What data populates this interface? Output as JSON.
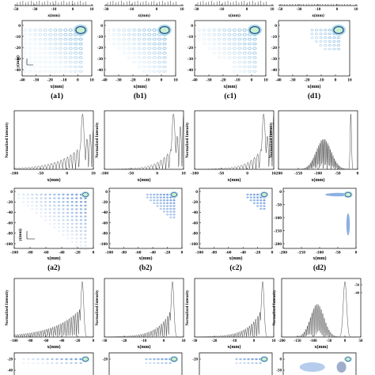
{
  "axis_labels": {
    "x_mm": "x(mm)",
    "y_mm": "y(mm)",
    "intensity": "Normalized Intensity"
  },
  "panel_labels": [
    "(a1)",
    "(b1)",
    "(c1)",
    "(d1)",
    "(a2)",
    "(b2)",
    "(c2)",
    "(d2)"
  ],
  "chart_data": [
    {
      "id": "row0-top-profiles",
      "type": "line",
      "panels": [
        {
          "xticks": [
            "-50",
            "-30",
            "-10",
            "0",
            "10"
          ]
        },
        {
          "xticks": [
            "-30",
            "-10",
            "0",
            "10"
          ]
        },
        {
          "xticks": [
            "-30",
            "-10",
            "0",
            "10"
          ]
        },
        {
          "xticks": [
            "-50",
            "-30",
            "-10",
            "0",
            "10"
          ]
        }
      ],
      "xlabel": "x(mm)"
    },
    {
      "id": "row1-intensity-maps",
      "type": "heatmap",
      "panels": [
        {
          "label": "(a1)",
          "xlim": [
            -40,
            10
          ],
          "ylim": [
            -40,
            10
          ],
          "xticks": [
            "-40",
            "-30",
            "-20",
            "-10",
            "0",
            "10"
          ],
          "yticks": [
            "0",
            "-10",
            "-20",
            "-30",
            "-40"
          ]
        },
        {
          "label": "(b1)",
          "xlim": [
            -40,
            10
          ],
          "ylim": [
            -40,
            10
          ],
          "xticks": [
            "-40",
            "-30",
            "-20",
            "-10",
            "0",
            "10"
          ],
          "yticks": [
            "0",
            "-10",
            "-20",
            "-30",
            "-40"
          ]
        },
        {
          "label": "(c1)",
          "xlim": [
            -40,
            10
          ],
          "ylim": [
            -40,
            10
          ],
          "xticks": [
            "-40",
            "-30",
            "-20",
            "-10",
            "0",
            "10"
          ],
          "yticks": [
            "0",
            "-10",
            "-20",
            "-30",
            "-40"
          ]
        },
        {
          "label": "(d1)",
          "xlim": [
            -40,
            10
          ],
          "ylim": [
            -40,
            10
          ],
          "xticks": [
            "-40",
            "-30",
            "-20",
            "-10",
            "0",
            "10"
          ],
          "yticks": [
            "0",
            "-10",
            "-20",
            "-30",
            "-40"
          ]
        }
      ],
      "xlabel": "x(mm)",
      "ylabel": "y(mm)"
    },
    {
      "id": "row2-intensity-profiles",
      "type": "line",
      "panels": [
        {
          "xlim": [
            -100,
            10
          ],
          "xticks": [
            "-100",
            "-50",
            "0",
            "10"
          ],
          "peak_x": -5,
          "envelope": "decaying oscillation toward -x"
        },
        {
          "xlim": [
            -100,
            10
          ],
          "xticks": [
            "-100",
            "-50",
            "0",
            "10"
          ],
          "peak_x": -4
        },
        {
          "xlim": [
            -100,
            10
          ],
          "xticks": [
            "-100",
            "-50",
            "0",
            "10"
          ],
          "peak_x": -4
        },
        {
          "xlim": [
            -200,
            10
          ],
          "xticks": [
            "-200",
            "-150",
            "-100",
            "-50",
            "0"
          ],
          "peak_x": -8,
          "secondary_lobe_center": -80
        }
      ],
      "xlabel": "x(mm)",
      "ylabel": "Normalized Intensity"
    },
    {
      "id": "row3-intensity-maps",
      "type": "heatmap",
      "panels": [
        {
          "label": "(a2)",
          "xticks": [
            "-100",
            "-80",
            "-60",
            "-40",
            "-20",
            "0"
          ],
          "yticks": [
            "0",
            "-20",
            "-40",
            "-60",
            "-80",
            "-100"
          ]
        },
        {
          "label": "(b2)",
          "xticks": [
            "-100",
            "-80",
            "-60",
            "-40",
            "-20",
            "0"
          ],
          "yticks": [
            "0",
            "-20",
            "-40",
            "-60",
            "-80",
            "-100"
          ]
        },
        {
          "label": "(c2)",
          "xticks": [
            "-100",
            "-80",
            "-60",
            "-40",
            "-20",
            "0"
          ],
          "yticks": [
            "0",
            "-20",
            "-40",
            "-60",
            "-80",
            "-100"
          ]
        },
        {
          "label": "(d2)",
          "xticks": [
            "-200",
            "-150",
            "-100",
            "-50",
            "0"
          ],
          "yticks": [
            "0",
            "-50",
            "-100",
            "-150",
            "-200"
          ]
        }
      ],
      "xlabel": "x(mm)",
      "ylabel": "y(mm)"
    },
    {
      "id": "row4-intensity-profiles",
      "type": "line",
      "panels": [
        {
          "xticks": [
            "-100",
            "-80",
            "-60",
            "-40",
            "-20",
            "0"
          ]
        },
        {
          "xticks": [
            "-30",
            "-20",
            "-10",
            "0",
            "10"
          ]
        },
        {
          "xticks": [
            "-30",
            "-20",
            "-10",
            "0",
            "10"
          ]
        },
        {
          "xticks": [
            "-200",
            "-150",
            "-100",
            "-50",
            "0",
            "50"
          ],
          "yticks": [
            "-50",
            "-40"
          ]
        }
      ],
      "xlabel": "x(mm)",
      "ylabel": "Normalized Intensity"
    },
    {
      "id": "row5-intensity-maps-partial",
      "type": "heatmap",
      "panels": [
        {
          "yticks": [
            "-20",
            "-40"
          ]
        },
        {
          "yticks": [
            "-20"
          ]
        },
        {
          "yticks": [
            "-20"
          ]
        },
        {
          "yticks": [
            "0",
            "-50"
          ]
        }
      ]
    }
  ],
  "colors": {
    "axis": "#000000",
    "curve": "#333333",
    "ring_dark": "#2b4a8c",
    "ring_mid": "#5b8fd6",
    "ring_light": "#a8d8e8",
    "ring_glow": "#c8f0d0"
  }
}
